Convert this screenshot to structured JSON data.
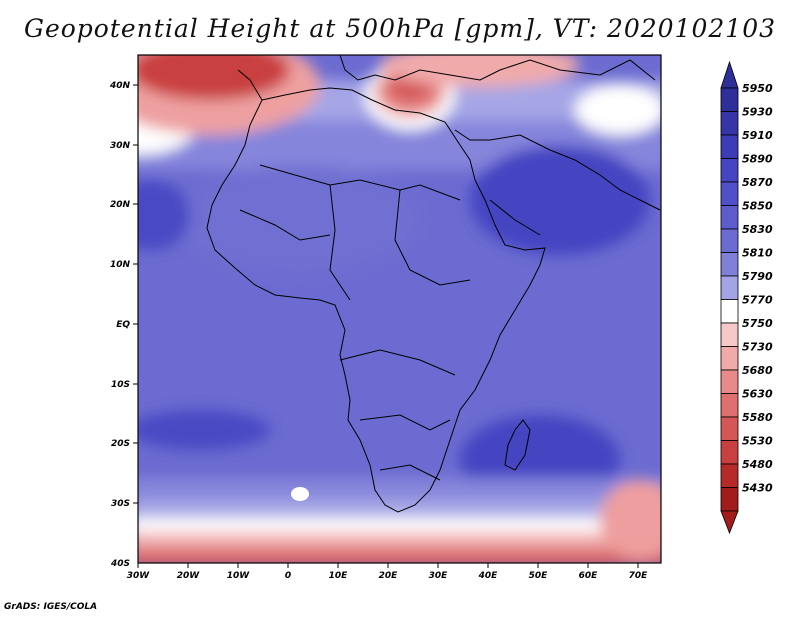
{
  "map": {
    "title": "Geopotential Height at 500hPa [gpm], VT: 2020102103",
    "credit": "GrADS: IGES/COLA",
    "variable": "Geopotential Height",
    "level_hpa": 500,
    "units": "gpm",
    "valid_time": "2020102103",
    "region": "Africa",
    "lon_labels": [
      "30W",
      "20W",
      "10W",
      "0",
      "10E",
      "20E",
      "30E",
      "40E",
      "50E",
      "60E",
      "70E"
    ],
    "lat_labels": [
      "40N",
      "30N",
      "20N",
      "10N",
      "EQ",
      "10S",
      "20S",
      "30S",
      "40S"
    ]
  },
  "colorbar": {
    "levels": [
      "5950",
      "5930",
      "5910",
      "5890",
      "5870",
      "5850",
      "5830",
      "5810",
      "5790",
      "5770",
      "5750",
      "5730",
      "5680",
      "5630",
      "5580",
      "5530",
      "5480",
      "5430"
    ],
    "colors": [
      "#2f2f9a",
      "#3535a8",
      "#3c3cb6",
      "#4545c2",
      "#5050c8",
      "#5c5ccc",
      "#6b6bd1",
      "#8080d8",
      "#a3a3e5",
      "#ffffff",
      "#f6c9c9",
      "#f1aaaa",
      "#e88a8a",
      "#df7070",
      "#d45656",
      "#c94040",
      "#b62a2a",
      "#a31c1c"
    ]
  }
}
